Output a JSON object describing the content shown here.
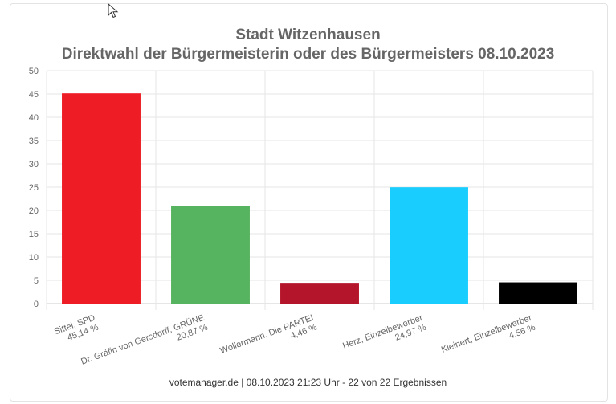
{
  "chart_data": {
    "type": "bar",
    "title": "Stadt Witzenhausen",
    "subtitle": "Direktwahl der Bürgermeisterin oder des Bürgermeisters 08.10.2023",
    "categories": [
      "Sittel, SPD",
      "Dr. Gräfin von Gersdorff, GRÜNE",
      "Wollermann, Die PARTEI",
      "Herz, Einzelbewerber",
      "Kleinert, Einzelbewerber"
    ],
    "value_labels": [
      "45,14 %",
      "20,87 %",
      "4,46 %",
      "24,97 %",
      "4,56 %"
    ],
    "values": [
      45.14,
      20.87,
      4.46,
      24.97,
      4.56
    ],
    "colors": [
      "#ee1c25",
      "#56b35f",
      "#b5152b",
      "#19ceff",
      "#000000"
    ],
    "ylim": [
      0,
      50
    ],
    "yticks": [
      "0",
      "5",
      "10",
      "15",
      "20",
      "25",
      "30",
      "35",
      "40",
      "45",
      "50"
    ],
    "grid": true,
    "legend": "none",
    "xlabel": "",
    "ylabel": ""
  },
  "footer": "votemanager.de | 08.10.2023 21:23 Uhr - 22 von 22 Ergebnissen"
}
